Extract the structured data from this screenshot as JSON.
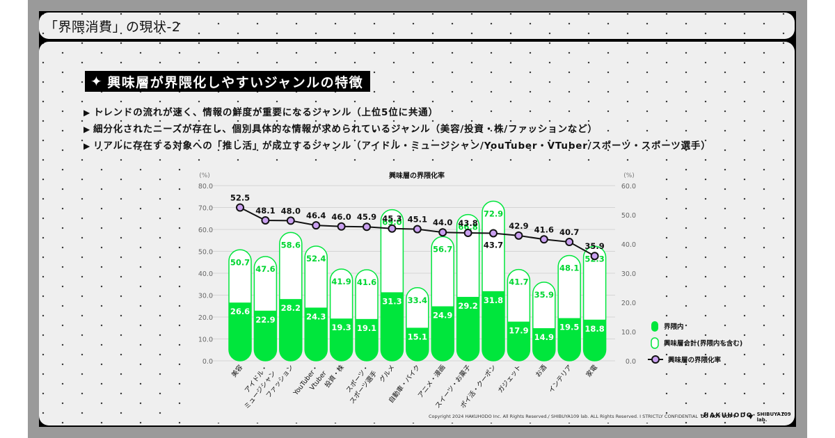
{
  "page_title": "「界隈消費」の現状-2",
  "heading": {
    "icon": "four-point-star-icon",
    "text": "興味層が界隈化しやすいジャンルの特徴"
  },
  "bullets": [
    "トレンドの流れが速く、情報の鮮度が重要になるジャンル（上位5位に共通）",
    "細分化されたニーズが存在し、個別具体的な情報が求められているジャンル（美容/投資・株/ファッションなど）",
    "リアルに存在する対象への「推し活」が成立するジャンル（アイドル・ミュージシャン/YouTuber・VTuber/スポーツ・スポーツ選手）"
  ],
  "bullet_marker": "▶",
  "chart_data": {
    "type": "bar",
    "title": "興味層の界隈化率",
    "left_axis": {
      "unit_label": "(%)",
      "range": [
        0,
        80
      ],
      "ticks": [
        "0.0",
        "10.0",
        "20.0",
        "30.0",
        "40.0",
        "50.0",
        "60.0",
        "70.0",
        "80.0"
      ]
    },
    "right_axis": {
      "unit_label": "(%)",
      "range": [
        0,
        60
      ],
      "ticks": [
        "0.0",
        "10.0",
        "20.0",
        "30.0",
        "40.0",
        "50.0",
        "60.0"
      ]
    },
    "grid": true,
    "categories": [
      "美容",
      "アイドル・ミュージシャン",
      "ファッション",
      "YouTuber・Vtuber",
      "投資・株",
      "スポーツ・スポーツ選手",
      "グルメ",
      "自動車・バイク",
      "アニメ・漫画",
      "スイーツ・お菓子",
      "ポイ活・クーポン",
      "ガジェット",
      "お酒",
      "インテリア",
      "家電"
    ],
    "category_lines": [
      [
        "美容"
      ],
      [
        "アイドル・",
        "ミュージシャン"
      ],
      [
        "ファッション"
      ],
      [
        "YouTuber・",
        "Vtuber"
      ],
      [
        "投資・株"
      ],
      [
        "スポーツ・",
        "スポーツ選手"
      ],
      [
        "グルメ"
      ],
      [
        "自動車・バイク"
      ],
      [
        "アニメ・漫画"
      ],
      [
        "スイーツ・お菓子"
      ],
      [
        "ポイ活・クーポン"
      ],
      [
        "ガジェット"
      ],
      [
        "お酒"
      ],
      [
        "インテリア"
      ],
      [
        "家電"
      ]
    ],
    "series": [
      {
        "name": "界隈内",
        "type": "bar",
        "axis": "left",
        "color": "#00e63c",
        "values": [
          26.6,
          22.9,
          28.2,
          24.3,
          19.3,
          19.1,
          31.3,
          15.1,
          24.9,
          29.2,
          31.8,
          17.9,
          14.9,
          19.5,
          18.8
        ]
      },
      {
        "name": "興味層合計(界隈内を含む)",
        "type": "bar-outline",
        "axis": "left",
        "color": "#00e63c",
        "values": [
          50.7,
          47.6,
          58.6,
          52.4,
          41.9,
          41.6,
          69.0,
          33.4,
          56.7,
          66.8,
          72.9,
          41.7,
          35.9,
          48.1,
          52.3
        ]
      },
      {
        "name": "興味層の界隈化率",
        "type": "line",
        "axis": "right",
        "color": "#111111",
        "marker_color": "#c9a0f0",
        "values": [
          52.5,
          48.1,
          48.0,
          46.4,
          46.0,
          45.9,
          45.3,
          45.1,
          44.0,
          43.8,
          43.7,
          42.9,
          41.6,
          40.7,
          35.9
        ]
      }
    ],
    "legend_position": "right"
  },
  "footer": {
    "copyright": "Copyright 2024 HAKUHODO Inc. All Rights Reserved./ SHIBUYA109 lab. ALL Rights Reserved. I  STRICTLY  CONFIDENTIAL",
    "notice": "DO NOT COPY",
    "logo_hakuhodo": "·HAKUHODO·",
    "logo_shibuya": "SHIBUYA109 lab."
  }
}
